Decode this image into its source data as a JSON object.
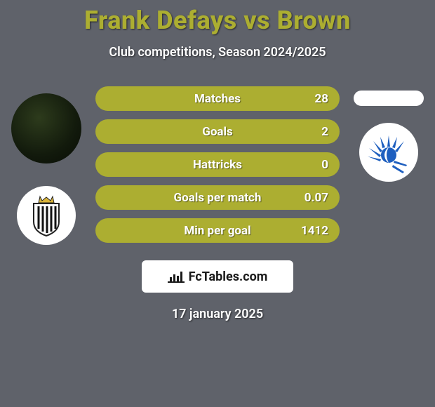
{
  "colors": {
    "background": "#5f626a",
    "title": "#acae31",
    "subtitle": "#ffffff",
    "bar_fill": "#acae31",
    "bar_text": "#ffffff",
    "logo_bg": "#ffffff",
    "logo_text": "#1a1a1a",
    "date_text": "#ffffff",
    "player_right_bg": "#ffffff",
    "crest_left_bg": "#ffffff",
    "crest_right_bg": "#ffffff",
    "crest_right_accent": "#1e5fbf"
  },
  "typography": {
    "title_fontsize": 36,
    "subtitle_fontsize": 18,
    "bar_label_fontsize": 17,
    "date_fontsize": 18
  },
  "header": {
    "title": "Frank Defays vs Brown",
    "subtitle": "Club competitions, Season 2024/2025"
  },
  "stats": [
    {
      "label": "Matches",
      "value": "28"
    },
    {
      "label": "Goals",
      "value": "2"
    },
    {
      "label": "Hattricks",
      "value": "0"
    },
    {
      "label": "Goals per match",
      "value": "0.07"
    },
    {
      "label": "Min per goal",
      "value": "1412"
    }
  ],
  "footer": {
    "brand": "FcTables.com",
    "date": "17 january 2025"
  },
  "left": {
    "player_name": "Frank Defays",
    "club_crest": "rcsc"
  },
  "right": {
    "player_name": "Brown",
    "club_crest": "gent"
  }
}
